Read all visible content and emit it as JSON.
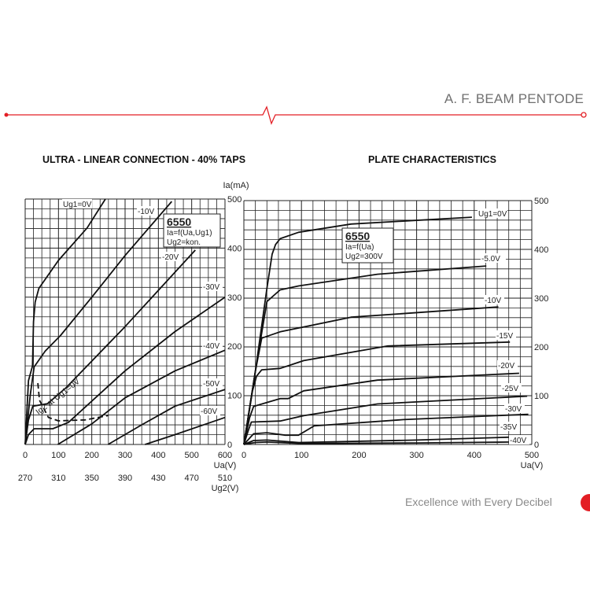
{
  "header": {
    "title": "A. F. BEAM PENTODE",
    "accent_color": "#e31e24"
  },
  "footer": {
    "tagline": "Excellence with Every Decibel"
  },
  "chart_data": [
    {
      "type": "line",
      "title": "ULTRA - LINEAR CONNECTION - 40% TAPS",
      "box": {
        "tube": "6550",
        "line1": "Ia=f(Ua,Ug1)",
        "line2": "Ug2=kon."
      },
      "xlabel": "Ua(V)",
      "xlabel2": "Ug2(V)",
      "ylabel": "Ia(mA)",
      "xlim": [
        0,
        600
      ],
      "ylim": [
        0,
        500
      ],
      "xticks": [
        "0",
        "100",
        "200",
        "300",
        "400",
        "500",
        "600"
      ],
      "xticks2": [
        "270",
        "310",
        "350",
        "390",
        "430",
        "470",
        "510"
      ],
      "yticks": [
        "0",
        "100",
        "200",
        "300",
        "400",
        "500"
      ],
      "grid": true,
      "series": [
        {
          "name": "Ug1=0V",
          "points": [
            [
              0,
              0
            ],
            [
              10,
              130
            ],
            [
              22,
              160
            ],
            [
              25,
              250
            ],
            [
              30,
              290
            ],
            [
              41,
              318
            ],
            [
              100,
              375
            ],
            [
              186,
              441
            ],
            [
              241,
              500
            ]
          ]
        },
        {
          "name": "-10V",
          "points": [
            [
              0,
              0
            ],
            [
              15,
              100
            ],
            [
              27,
              158
            ],
            [
              60,
              190
            ],
            [
              106,
              222
            ],
            [
              200,
              300
            ],
            [
              300,
              385
            ],
            [
              440,
              495
            ]
          ]
        },
        {
          "name": "-20V",
          "points": [
            [
              0,
              0
            ],
            [
              10,
              50
            ],
            [
              23,
              78
            ],
            [
              67,
              83
            ],
            [
              122,
              115
            ],
            [
              300,
              240
            ],
            [
              511,
              396
            ]
          ]
        },
        {
          "name": "-30V",
          "points": [
            [
              0,
              0
            ],
            [
              10,
              20
            ],
            [
              27,
              32
            ],
            [
              83,
              32
            ],
            [
              130,
              45
            ],
            [
              300,
              150
            ],
            [
              450,
              230
            ],
            [
              600,
              300
            ]
          ]
        },
        {
          "name": "-40V",
          "points": [
            [
              98,
              0
            ],
            [
              200,
              42
            ],
            [
              300,
              95
            ],
            [
              450,
              150
            ],
            [
              600,
              192
            ]
          ]
        },
        {
          "name": "-50V",
          "points": [
            [
              249,
              0
            ],
            [
              350,
              40
            ],
            [
              450,
              78
            ],
            [
              600,
              112
            ]
          ]
        },
        {
          "name": "-60V",
          "points": [
            [
              360,
              0
            ],
            [
              450,
              20
            ],
            [
              600,
              55
            ]
          ]
        },
        {
          "name": "Ig2 at Ug1=0V",
          "dashed": true,
          "points": [
            [
              38,
              125
            ],
            [
              43,
              90
            ],
            [
              70,
              55
            ],
            [
              100,
              48
            ],
            [
              180,
              50
            ],
            [
              249,
              59
            ]
          ]
        }
      ]
    },
    {
      "type": "line",
      "title": "PLATE CHARACTERISTICS",
      "box": {
        "tube": "6550",
        "line1": "Ia=f(Ua)",
        "line2": "Ug2=300V"
      },
      "xlabel": "Ua(V)",
      "xlim": [
        0,
        500
      ],
      "ylim": [
        0,
        500
      ],
      "xticks": [
        "0",
        "100",
        "200",
        "300",
        "400",
        "500"
      ],
      "yticks": [
        "0",
        "100",
        "200",
        "300",
        "400",
        "500"
      ],
      "grid": true,
      "series": [
        {
          "name": "Ug1=0V",
          "points": [
            [
              0,
              0
            ],
            [
              20,
              150
            ],
            [
              40,
              320
            ],
            [
              49,
              390
            ],
            [
              55,
              410
            ],
            [
              63,
              422
            ],
            [
              95,
              435
            ],
            [
              186,
              452
            ],
            [
              396,
              466
            ]
          ]
        },
        {
          "name": "-5.0V",
          "points": [
            [
              0,
              0
            ],
            [
              20,
              150
            ],
            [
              40,
              293
            ],
            [
              63,
              317
            ],
            [
              95,
              325
            ],
            [
              232,
              349
            ],
            [
              421,
              366
            ]
          ]
        },
        {
          "name": "-10V",
          "points": [
            [
              0,
              0
            ],
            [
              20,
              150
            ],
            [
              31,
              218
            ],
            [
              63,
              231
            ],
            [
              186,
              261
            ],
            [
              442,
              282
            ]
          ]
        },
        {
          "name": "-15V",
          "points": [
            [
              0,
              0
            ],
            [
              15,
              110
            ],
            [
              22,
              140
            ],
            [
              31,
              153
            ],
            [
              63,
              156
            ],
            [
              104,
              172
            ],
            [
              250,
              202
            ],
            [
              462,
              210
            ]
          ]
        },
        {
          "name": "-20V",
          "points": [
            [
              0,
              0
            ],
            [
              10,
              55
            ],
            [
              17,
              78
            ],
            [
              63,
              94
            ],
            [
              77,
              94
            ],
            [
              104,
              110
            ],
            [
              232,
              132
            ],
            [
              478,
              146
            ]
          ]
        },
        {
          "name": "-25V",
          "points": [
            [
              0,
              0
            ],
            [
              8,
              30
            ],
            [
              13,
              46
            ],
            [
              63,
              48
            ],
            [
              104,
              59
            ],
            [
              232,
              83
            ],
            [
              492,
              99
            ]
          ]
        },
        {
          "name": "-30V",
          "points": [
            [
              0,
              0
            ],
            [
              17,
              22
            ],
            [
              40,
              24
            ],
            [
              72,
              19
            ],
            [
              95,
              19
            ],
            [
              122,
              38
            ],
            [
              277,
              51
            ],
            [
              494,
              62
            ]
          ]
        },
        {
          "name": "-35V",
          "points": [
            [
              0,
              0
            ],
            [
              17,
              8
            ],
            [
              40,
              9
            ],
            [
              95,
              4
            ],
            [
              300,
              9
            ],
            [
              464,
              15
            ]
          ]
        },
        {
          "name": "-40V",
          "points": [
            [
              0,
              0
            ],
            [
              20,
              4
            ],
            [
              40,
              5
            ],
            [
              100,
              2
            ],
            [
              300,
              3
            ],
            [
              465,
              5
            ]
          ]
        }
      ]
    }
  ]
}
